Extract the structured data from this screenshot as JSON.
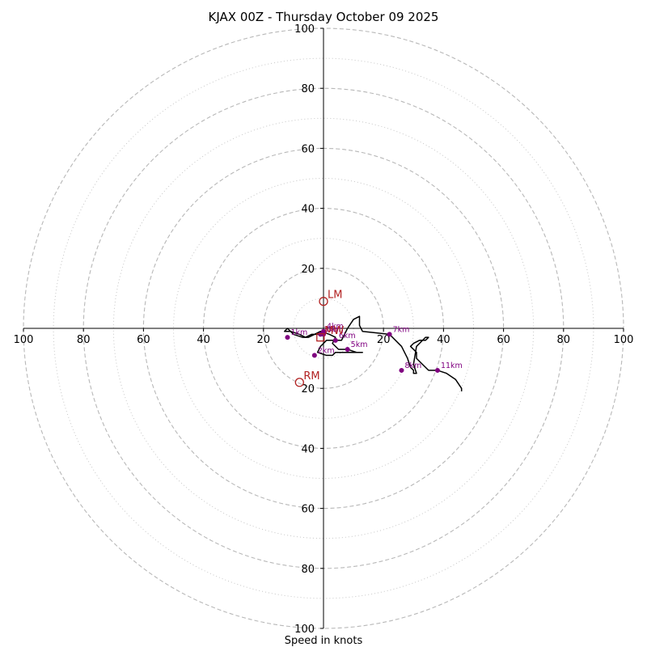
{
  "chart_data": {
    "type": "hodograph",
    "title": "KJAX 00Z - Thursday October 09 2025",
    "xlabel": "Speed in knots",
    "range": [
      -100,
      100
    ],
    "ring_major": [
      20,
      40,
      60,
      80,
      100
    ],
    "ring_minor": [
      10,
      30,
      50,
      70,
      90
    ],
    "x_ticks": [
      {
        "value": -100,
        "label": "100"
      },
      {
        "value": -80,
        "label": "80"
      },
      {
        "value": -60,
        "label": "60"
      },
      {
        "value": -40,
        "label": "40"
      },
      {
        "value": -20,
        "label": "20"
      },
      {
        "value": 20,
        "label": "20"
      },
      {
        "value": 40,
        "label": "40"
      },
      {
        "value": 60,
        "label": "60"
      },
      {
        "value": 80,
        "label": "80"
      },
      {
        "value": 100,
        "label": "100"
      }
    ],
    "y_ticks": [
      {
        "value": 100,
        "label": "100"
      },
      {
        "value": 80,
        "label": "80"
      },
      {
        "value": 60,
        "label": "60"
      },
      {
        "value": 40,
        "label": "40"
      },
      {
        "value": 20,
        "label": "20"
      },
      {
        "value": -20,
        "label": "20"
      },
      {
        "value": -40,
        "label": "40"
      },
      {
        "value": -60,
        "label": "60"
      },
      {
        "value": -80,
        "label": "80"
      },
      {
        "value": -100,
        "label": "100"
      }
    ],
    "trace": {
      "u": [
        -1,
        -2,
        -4,
        -6,
        -6,
        -8,
        -11,
        -13,
        -12,
        -10,
        -7,
        -5,
        -3,
        -1,
        2,
        4,
        3,
        5,
        8,
        11,
        13,
        10,
        6,
        4,
        3,
        1,
        -2,
        -1,
        0,
        1,
        3,
        6,
        8,
        10,
        12,
        12,
        13,
        22,
        26,
        28,
        29,
        30,
        30,
        31,
        30,
        31,
        34,
        35,
        34,
        32,
        30,
        29,
        31,
        31,
        33,
        35,
        38,
        41,
        44,
        46,
        46
      ],
      "v": [
        -2,
        -2,
        -2,
        -3,
        -3,
        -2,
        -1,
        -1,
        0,
        -2,
        -3,
        -3,
        -2,
        -1,
        -2,
        -3,
        -5,
        -7,
        -7,
        -8,
        -8,
        -8,
        -8,
        -8,
        -9,
        -9,
        -8,
        -6,
        -5,
        -4,
        -4,
        -4,
        0,
        3,
        4,
        1,
        -1,
        -2,
        -6,
        -10,
        -13,
        -14,
        -15,
        -15,
        -12,
        -6,
        -3,
        -3,
        -4,
        -4,
        -5,
        -6,
        -8,
        -10,
        -12,
        -14,
        -14,
        -15,
        -17,
        -20,
        -21
      ],
      "color": "#000000"
    },
    "height_markers": [
      {
        "label": "0km",
        "u": 0,
        "v": -2
      },
      {
        "label": "1km",
        "u": -12,
        "v": -3
      },
      {
        "label": "2km",
        "u": -3,
        "v": -9
      },
      {
        "label": "3km",
        "u": -1,
        "v": -2
      },
      {
        "label": "4km",
        "u": 0,
        "v": -1
      },
      {
        "label": "5km",
        "u": 8,
        "v": -7
      },
      {
        "label": "6km",
        "u": 4,
        "v": -4
      },
      {
        "label": "7km",
        "u": 22,
        "v": -2
      },
      {
        "label": "8km",
        "u": 26,
        "v": -14
      },
      {
        "label": "11km",
        "u": 38,
        "v": -14
      }
    ],
    "marker_color": "#800080",
    "motion_markers": [
      {
        "label": "LM",
        "u": 0,
        "v": 9,
        "symbol": "circle"
      },
      {
        "label": "RM",
        "u": -8,
        "v": -18,
        "symbol": "circle"
      },
      {
        "label": "MW",
        "u": -1,
        "v": -3,
        "symbol": "square"
      }
    ],
    "motion_color": "#b22222",
    "grid_color": "#b8b8b8"
  }
}
